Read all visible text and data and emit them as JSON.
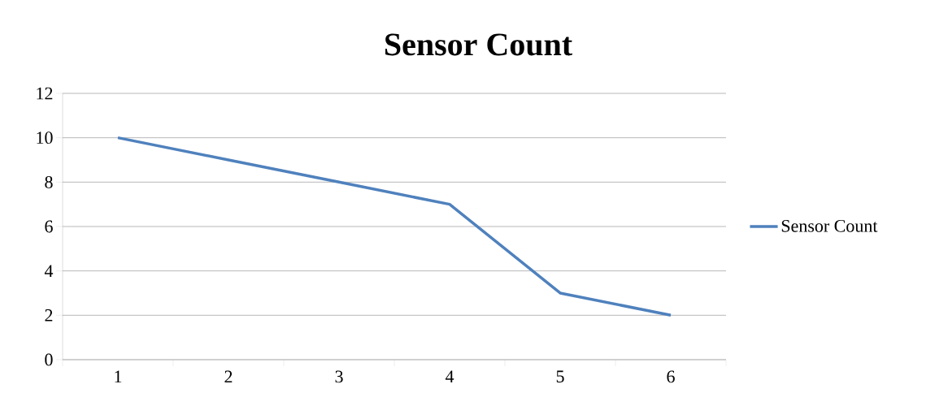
{
  "chart_data": {
    "type": "line",
    "title": "Sensor Count",
    "categories": [
      "1",
      "2",
      "3",
      "4",
      "5",
      "6"
    ],
    "series": [
      {
        "name": "Sensor Count",
        "color": "#4f81bd",
        "values": [
          10,
          9,
          8,
          7,
          3,
          2
        ]
      }
    ],
    "ylim": [
      0,
      12
    ],
    "yticks": [
      0,
      2,
      4,
      6,
      8,
      10,
      12
    ],
    "grid": "y",
    "legend": "right",
    "marker": "none",
    "line_style": "solid"
  }
}
